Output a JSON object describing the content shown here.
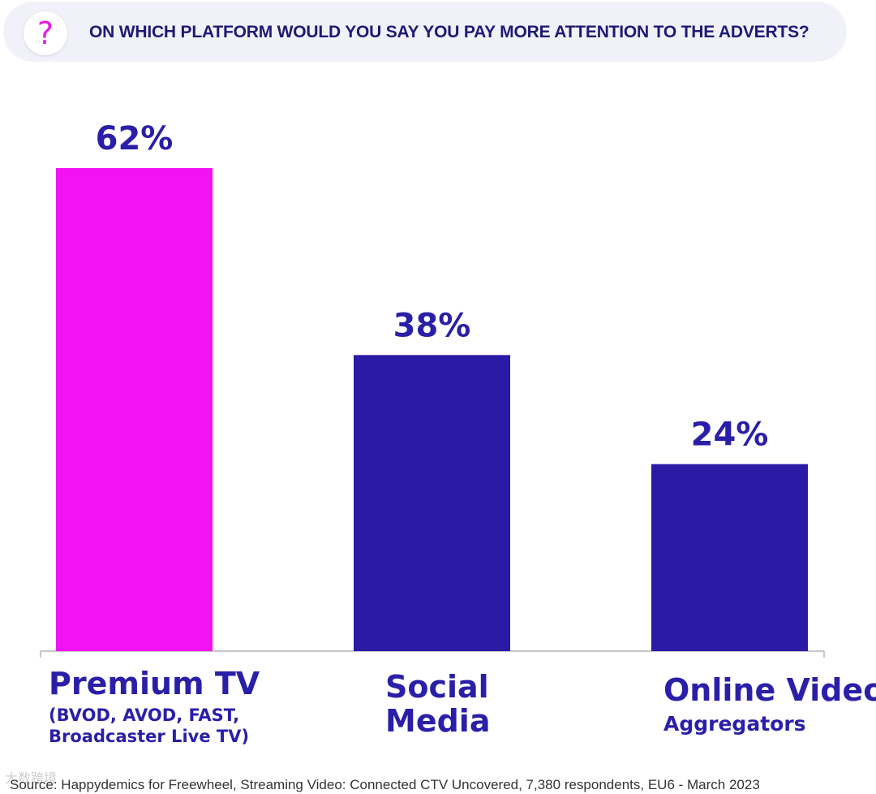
{
  "question": {
    "icon": "question-mark-icon",
    "icon_glyph": "?",
    "text": "ON WHICH PLATFORM WOULD YOU SAY YOU PAY MORE ATTENTION TO THE ADVERTS?"
  },
  "chart_data": {
    "type": "bar",
    "categories": [
      "Premium TV",
      "Social Media",
      "Online Video Aggregators"
    ],
    "values": [
      62,
      38,
      24
    ],
    "value_labels": [
      "62%",
      "38%",
      "24%"
    ],
    "unit": "%",
    "ylim": [
      0,
      70
    ],
    "colors": [
      "#f312f2",
      "#2a1aa6",
      "#2a1aa6"
    ],
    "label_color": "#2a1fa8",
    "grid": false,
    "legend": "none"
  },
  "categories": [
    {
      "main": "Premium TV",
      "sub": "(BVOD, AVOD, FAST, Broadcaster Live TV)"
    },
    {
      "main": "Social",
      "main2": "Media"
    },
    {
      "main": "Online Video",
      "sub": "Aggregators"
    }
  ],
  "source": "Source: Happydemics for Freewheel, Streaming Video: Connected CTV Uncovered, 7,380 respondents, EU6 - March 2023",
  "watermark": "大数跨境"
}
